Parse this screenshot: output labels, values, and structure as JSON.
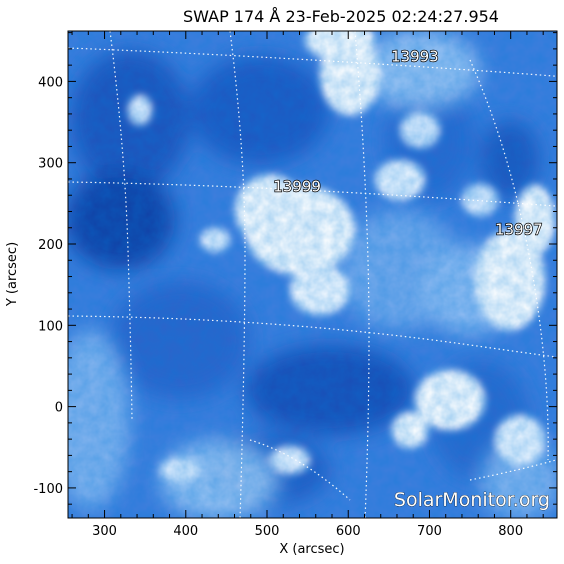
{
  "title": "SWAP 174 Å 23-Feb-2025 02:24:27.954",
  "xlabel": "X (arcsec)",
  "ylabel": "Y (arcsec)",
  "watermark": "SolarMonitor.org",
  "x_range": [
    255,
    857
  ],
  "y_range": [
    -137,
    462
  ],
  "x_ticks": [
    300,
    400,
    500,
    600,
    700,
    800
  ],
  "y_ticks": [
    -100,
    0,
    100,
    200,
    300,
    400
  ],
  "regions": [
    {
      "label": "13993",
      "x": 682,
      "y": 432
    },
    {
      "label": "13999",
      "x": 537,
      "y": 272
    },
    {
      "label": "13997",
      "x": 810,
      "y": 219
    }
  ],
  "colors": {
    "deep": "#0a2f8c",
    "mid": "#2f6fd4",
    "light": "#8fbdf2",
    "bright": "#ffffff",
    "grid": "#ffffff",
    "frame": "#000000"
  }
}
